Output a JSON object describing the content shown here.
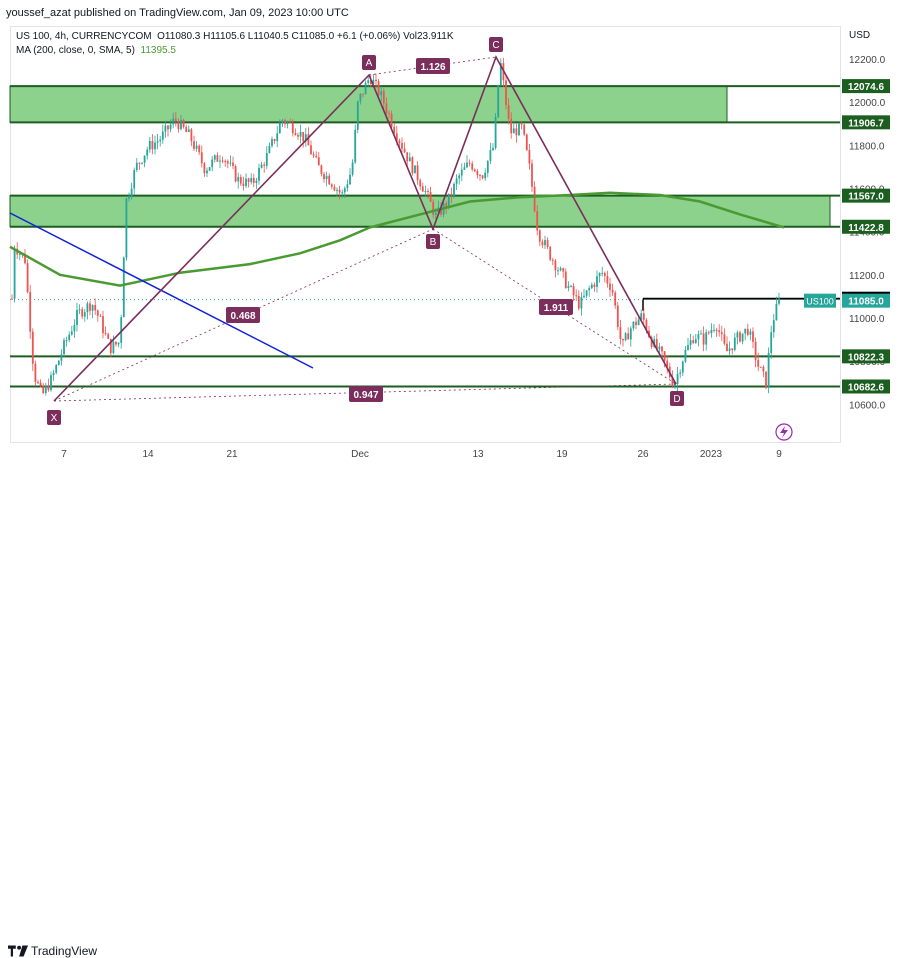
{
  "header": {
    "published": "youssef_azat published on TradingView.com, Jan 09, 2023 10:00 UTC"
  },
  "legend": {
    "symbol": "US 100, 4h, CURRENCYCOM",
    "ohlc": "O11080.3  H11105.6  L11040.5  C11085.0  +6.1 (+0.06%)  Vol23.911K",
    "ma_label": "MA (200, close, 0, SMA, 5)",
    "ma_value": "11395.5"
  },
  "footer": {
    "brand": "TradingView"
  },
  "colors": {
    "up": "#26a69a",
    "down": "#ef5350",
    "zone": "#66c266",
    "pattern": "#7b2d5c",
    "ma": "#4a9a32",
    "trend": "#1122dd",
    "level": "#1b5e20"
  },
  "chart_data": {
    "type": "candlestick",
    "title": "US 100, 4h, CURRENCYCOM",
    "currency": "USD",
    "y_ticks": [
      "12200.0",
      "12000.0",
      "11800.0",
      "11600.0",
      "11400.0",
      "11200.0",
      "11000.0",
      "10800.0",
      "10600.0"
    ],
    "x_ticks": [
      "7",
      "14",
      "21",
      "Dec",
      "13",
      "19",
      "26",
      "2023",
      "9"
    ],
    "ylim": [
      10520,
      12300
    ],
    "last_price": {
      "label": "US100",
      "value": "11085.0"
    },
    "levels": [
      {
        "value": "12074.6"
      },
      {
        "value": "11906.7"
      },
      {
        "value": "11567.0"
      },
      {
        "value": "11422.8"
      },
      {
        "value": "11089.4"
      },
      {
        "value": "10822.3"
      },
      {
        "value": "10682.6"
      }
    ],
    "zones": [
      {
        "from": 11906.7,
        "to": 12074.6
      },
      {
        "from": 11422.8,
        "to": 11567.0
      }
    ],
    "xabcd": {
      "points": [
        {
          "label": "X",
          "price": 10600
        },
        {
          "label": "A",
          "price": 12135
        },
        {
          "label": "B",
          "price": 11422
        },
        {
          "label": "C",
          "price": 12220
        },
        {
          "label": "D",
          "price": 10665
        }
      ],
      "ratios": [
        "0.468",
        "1.126",
        "1.911",
        "0.947"
      ]
    },
    "moving_average": {
      "name": "MA (200, close, 0, SMA, 5)",
      "value": 11395.5
    }
  }
}
